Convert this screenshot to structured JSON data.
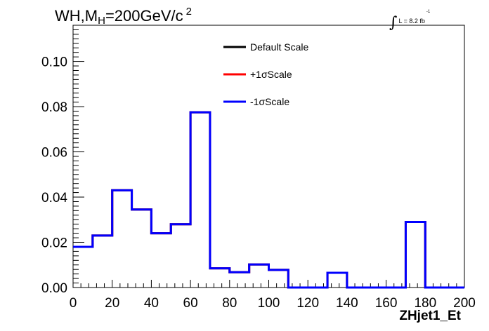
{
  "title": {
    "prefix": "WH,M",
    "subscript": "H",
    "suffix": "=200GeV/c",
    "superscript": "2"
  },
  "luminosity": {
    "integral": "∫",
    "text": "L = 8.2 fb",
    "superscript": "-1"
  },
  "colors": {
    "default": "#000000",
    "plus": "#ff0000",
    "minus": "#0000ff"
  },
  "chart_data": {
    "type": "line",
    "style": "histogram-step",
    "xlabel": "ZHjet1_Et",
    "ylabel": "",
    "xlim": [
      0,
      200
    ],
    "ylim": [
      0,
      0.116
    ],
    "xticks": [
      "0",
      "20",
      "40",
      "60",
      "80",
      "100",
      "120",
      "140",
      "160",
      "180",
      "200"
    ],
    "yticks": [
      "0.00",
      "0.02",
      "0.04",
      "0.06",
      "0.08",
      "0.10"
    ],
    "bin_edges": [
      0,
      10,
      20,
      30,
      40,
      50,
      60,
      70,
      80,
      90,
      100,
      110,
      120,
      130,
      140,
      150,
      160,
      170,
      180,
      190,
      200
    ],
    "series": [
      {
        "name": "Default Scale",
        "color": "#000000",
        "values": [
          0.018,
          0.023,
          0.043,
          0.0345,
          0.024,
          0.028,
          0.0775,
          0.0085,
          0.0068,
          0.0102,
          0.0078,
          0.0,
          0.0,
          0.0065,
          0.0,
          0.0,
          0.0,
          0.029,
          0.0,
          0.0
        ]
      },
      {
        "name": "+1σScale",
        "color": "#ff0000",
        "values": [
          0.018,
          0.023,
          0.043,
          0.0345,
          0.024,
          0.028,
          0.0775,
          0.0085,
          0.0068,
          0.0102,
          0.0078,
          0.0,
          0.0,
          0.0065,
          0.0,
          0.0,
          0.0,
          0.029,
          0.0,
          0.0
        ]
      },
      {
        "name": "-1σScale",
        "color": "#0000ff",
        "values": [
          0.018,
          0.023,
          0.043,
          0.0345,
          0.024,
          0.028,
          0.0775,
          0.0085,
          0.0068,
          0.0102,
          0.0078,
          0.0,
          0.0,
          0.0065,
          0.0,
          0.0,
          0.0,
          0.029,
          0.0,
          0.0
        ]
      }
    ],
    "legend_position": "top-center",
    "grid": false
  }
}
